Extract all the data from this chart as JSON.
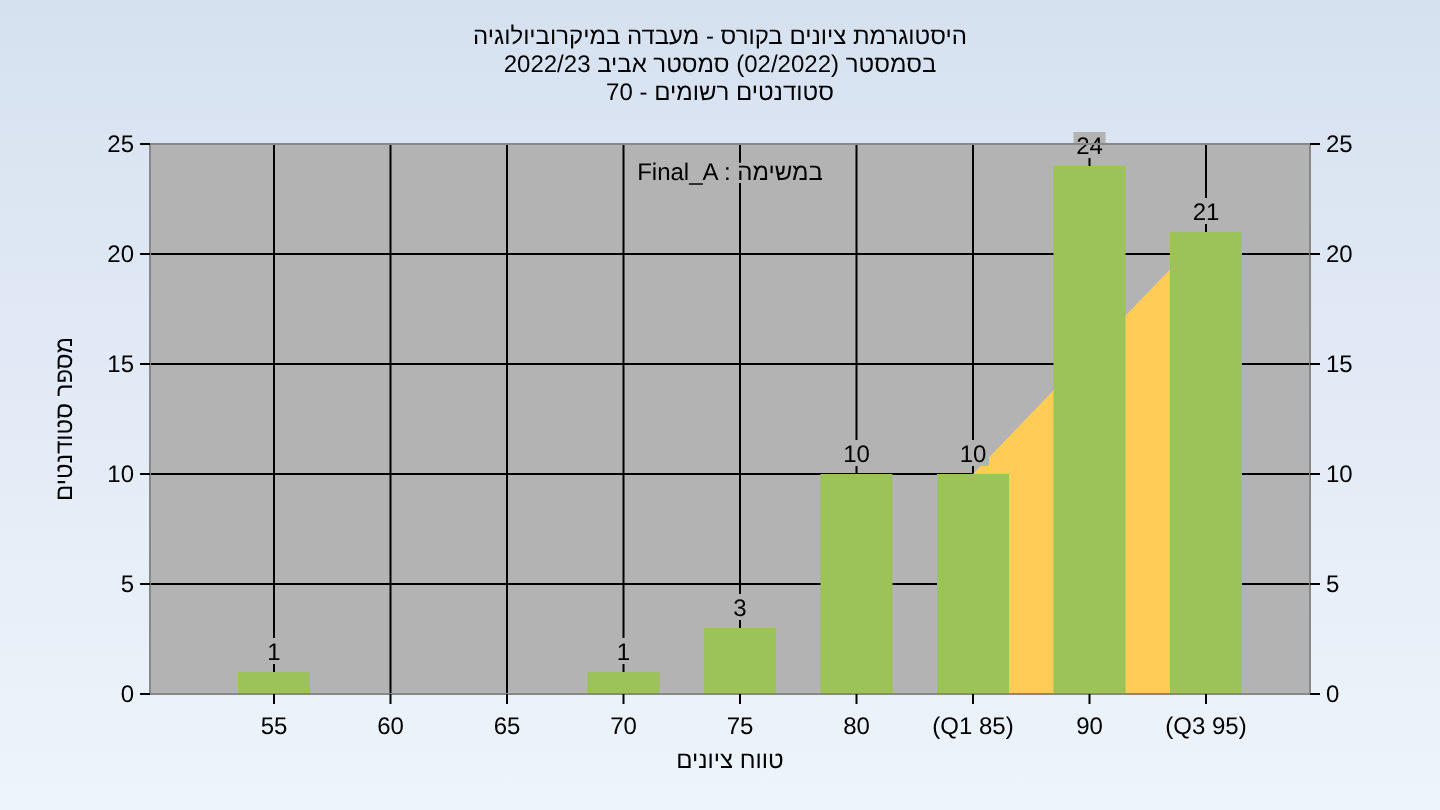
{
  "chart_data": {
    "type": "bar",
    "title": "היסטוגרמת ציונים בקורס - מעבדה במיקרוביולוגיה",
    "subtitle": "בסמסטר  (02/2022)  סמסטר אביב 2022/23\nסטודנטים רשומים - 70",
    "xlabel": "טווח ציונים",
    "ylabel": "מספר סטודנטים",
    "annotations": [
      "Final_A : במשימה"
    ],
    "categories": [
      "55",
      "60",
      "65",
      "70",
      "75",
      "80",
      "(Q1 85)",
      "90",
      "(Q3 95)"
    ],
    "series": [
      {
        "type": "area",
        "color": "#ffcc55",
        "values": [
          null,
          null,
          null,
          null,
          null,
          null,
          10,
          null,
          21
        ]
      },
      {
        "color": "#9cc25a",
        "values": [
          1,
          0,
          0,
          1,
          3,
          10,
          10,
          24,
          21
        ],
        "value_labels": [
          "1",
          null,
          null,
          "1",
          "3",
          "10",
          "10",
          "24",
          "21"
        ]
      }
    ],
    "ylim": [
      0,
      25
    ],
    "yticks": [
      0,
      5,
      10,
      15,
      20,
      25
    ],
    "y2lim": [
      0,
      25
    ],
    "y2ticks": [
      0,
      5,
      10,
      15,
      20,
      25
    ],
    "grid": true
  }
}
